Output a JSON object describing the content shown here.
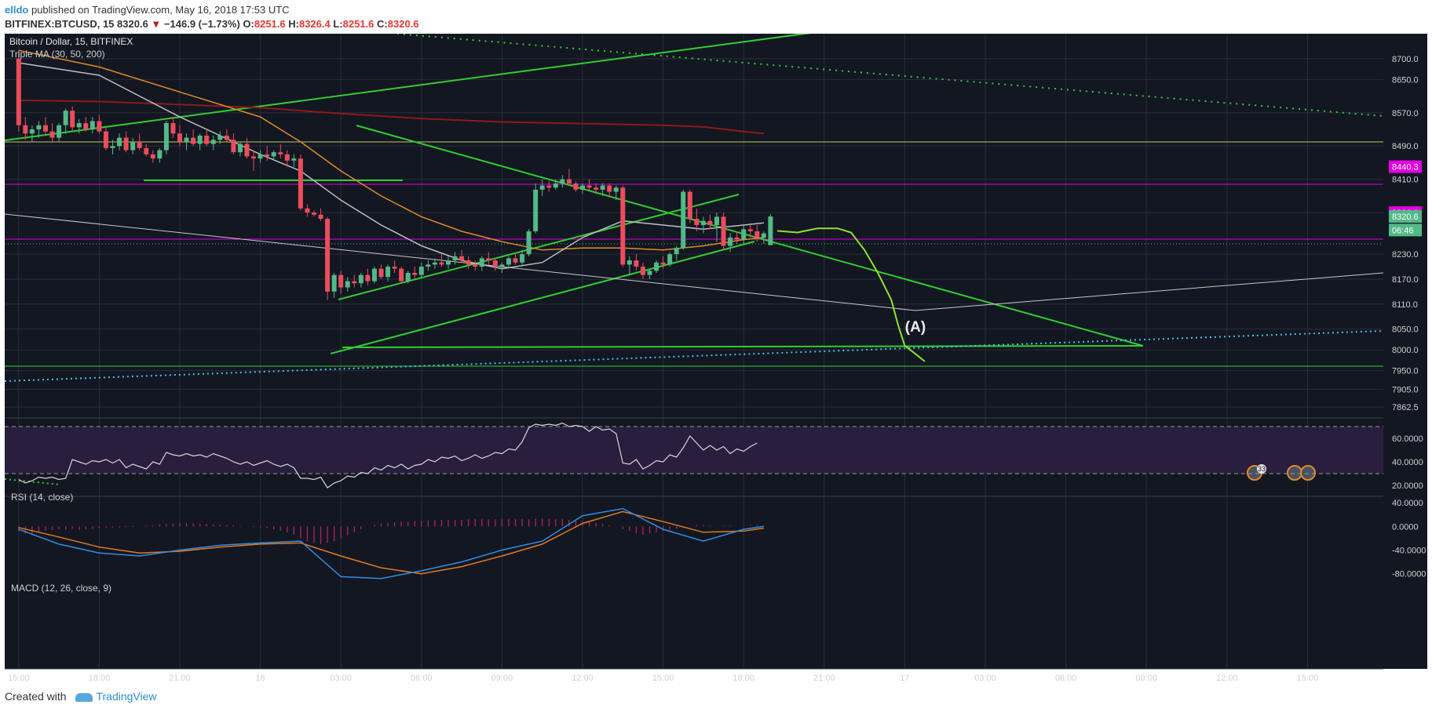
{
  "header": {
    "author": "elldo",
    "published_text": "published on TradingView.com, May 16, 2018 17:53 UTC",
    "symbol": "BITFINEX:BTCUSD, 15",
    "price": "8320.6",
    "arrow": "▼",
    "change": "−146.9 (−1.73%)",
    "o_label": "O:",
    "o_val": "8251.6",
    "h_label": "H:",
    "h_val": "8326.4",
    "l_label": "L:",
    "l_val": "8251.6",
    "c_label": "C:",
    "c_val": "8320.6"
  },
  "footer": {
    "created_with": "Created with",
    "brand": "TradingView"
  },
  "colors": {
    "bg": "#131722",
    "grid": "#2a2e39",
    "up": "#53b987",
    "down": "#eb4d5c",
    "ma30": "#bdbdbd",
    "ma50": "#e08a28",
    "ma200": "#8b1a1a",
    "trend": "#32cd32",
    "pink": "#e100e1",
    "cyan": "#3fc6e6",
    "yellowline": "#c8c85a",
    "rsi": "#d6d6d6",
    "rsi_band": "#2a1e3f",
    "macd": "#2e8ee6",
    "signal": "#e07a1f",
    "hist": "#b0235f"
  },
  "chart_data": {
    "type": "candlestick",
    "title": "Bitcoin / Dollar, 15, BITFINEX",
    "indicator_label": "Triple MA (30, 50, 200)",
    "annotation": "(A)",
    "earnings_badge": "33",
    "ylim": [
      7840,
      8760
    ],
    "price_ticks": [
      "8700.0",
      "8650.0",
      "8570.0",
      "8490.0",
      "8410.0",
      "8330.0",
      "8230.0",
      "8170.0",
      "8110.0",
      "8050.0",
      "8000.0",
      "7950.0",
      "7905.0",
      "7862.5"
    ],
    "price_labels": [
      {
        "value": 8440.3,
        "text": "8440.3",
        "color": "#e100e1"
      },
      {
        "value": 8330.0,
        "text": "8330.0",
        "color": "#e100e1"
      },
      {
        "value": 8320.6,
        "text": "8320.6",
        "color": "#53b987"
      },
      {
        "value": 8288,
        "text": "06:46",
        "color": "#53b987"
      }
    ],
    "x_ticks": [
      {
        "t": 0,
        "label": "15:00"
      },
      {
        "t": 12,
        "label": "18:00"
      },
      {
        "t": 24,
        "label": "21:00"
      },
      {
        "t": 36,
        "label": "16"
      },
      {
        "t": 48,
        "label": "03:00"
      },
      {
        "t": 60,
        "label": "06:00"
      },
      {
        "t": 72,
        "label": "09:00"
      },
      {
        "t": 84,
        "label": "12:00"
      },
      {
        "t": 96,
        "label": "15:00"
      },
      {
        "t": 108,
        "label": "18:00"
      },
      {
        "t": 120,
        "label": "21:00"
      },
      {
        "t": 132,
        "label": "17"
      },
      {
        "t": 144,
        "label": "03:00"
      },
      {
        "t": 156,
        "label": "06:00"
      },
      {
        "t": 168,
        "label": "09:00"
      },
      {
        "t": 180,
        "label": "12:00"
      },
      {
        "t": 192,
        "label": "15:00"
      }
    ],
    "candles": [
      [
        8700,
        8720,
        8525,
        8540
      ],
      [
        8540,
        8560,
        8505,
        8520
      ],
      [
        8520,
        8540,
        8500,
        8530
      ],
      [
        8530,
        8550,
        8510,
        8540
      ],
      [
        8540,
        8560,
        8515,
        8525
      ],
      [
        8525,
        8545,
        8500,
        8510
      ],
      [
        8510,
        8545,
        8500,
        8540
      ],
      [
        8540,
        8580,
        8520,
        8575
      ],
      [
        8575,
        8585,
        8525,
        8535
      ],
      [
        8535,
        8555,
        8520,
        8545
      ],
      [
        8545,
        8560,
        8525,
        8530
      ],
      [
        8530,
        8560,
        8520,
        8550
      ],
      [
        8550,
        8565,
        8520,
        8525
      ],
      [
        8525,
        8535,
        8480,
        8485
      ],
      [
        8485,
        8505,
        8470,
        8490
      ],
      [
        8490,
        8520,
        8480,
        8510
      ],
      [
        8510,
        8525,
        8475,
        8480
      ],
      [
        8480,
        8510,
        8470,
        8500
      ],
      [
        8500,
        8520,
        8480,
        8485
      ],
      [
        8485,
        8495,
        8465,
        8470
      ],
      [
        8470,
        8480,
        8450,
        8460
      ],
      [
        8460,
        8485,
        8450,
        8480
      ],
      [
        8480,
        8550,
        8470,
        8545
      ],
      [
        8545,
        8560,
        8510,
        8520
      ],
      [
        8520,
        8540,
        8490,
        8500
      ],
      [
        8500,
        8520,
        8480,
        8510
      ],
      [
        8510,
        8530,
        8490,
        8495
      ],
      [
        8495,
        8520,
        8480,
        8515
      ],
      [
        8515,
        8530,
        8490,
        8495
      ],
      [
        8495,
        8515,
        8480,
        8505
      ],
      [
        8505,
        8525,
        8495,
        8515
      ],
      [
        8515,
        8530,
        8500,
        8505
      ],
      [
        8505,
        8520,
        8470,
        8475
      ],
      [
        8475,
        8500,
        8465,
        8495
      ],
      [
        8495,
        8510,
        8460,
        8465
      ],
      [
        8465,
        8480,
        8430,
        8460
      ],
      [
        8460,
        8480,
        8450,
        8470
      ],
      [
        8470,
        8490,
        8455,
        8465
      ],
      [
        8465,
        8480,
        8455,
        8475
      ],
      [
        8475,
        8495,
        8460,
        8470
      ],
      [
        8470,
        8480,
        8440,
        8455
      ],
      [
        8455,
        8470,
        8440,
        8460
      ],
      [
        8460,
        8470,
        8335,
        8340
      ],
      [
        8340,
        8350,
        8320,
        8330
      ],
      [
        8330,
        8335,
        8320,
        8325
      ],
      [
        8325,
        8340,
        8310,
        8315
      ],
      [
        8315,
        8320,
        8120,
        8140
      ],
      [
        8140,
        8185,
        8125,
        8180
      ],
      [
        8180,
        8190,
        8135,
        8150
      ],
      [
        8150,
        8175,
        8140,
        8165
      ],
      [
        8165,
        8180,
        8150,
        8160
      ],
      [
        8160,
        8185,
        8150,
        8180
      ],
      [
        8180,
        8195,
        8155,
        8165
      ],
      [
        8165,
        8200,
        8160,
        8195
      ],
      [
        8195,
        8205,
        8170,
        8175
      ],
      [
        8175,
        8205,
        8165,
        8200
      ],
      [
        8200,
        8215,
        8185,
        8195
      ],
      [
        8195,
        8200,
        8160,
        8165
      ],
      [
        8165,
        8190,
        8160,
        8185
      ],
      [
        8185,
        8200,
        8170,
        8180
      ],
      [
        8180,
        8210,
        8175,
        8200
      ],
      [
        8200,
        8215,
        8190,
        8205
      ],
      [
        8205,
        8220,
        8195,
        8210
      ],
      [
        8210,
        8230,
        8200,
        8205
      ],
      [
        8205,
        8225,
        8195,
        8215
      ],
      [
        8215,
        8235,
        8205,
        8225
      ],
      [
        8225,
        8240,
        8210,
        8215
      ],
      [
        8215,
        8225,
        8195,
        8205
      ],
      [
        8205,
        8215,
        8190,
        8200
      ],
      [
        8200,
        8225,
        8190,
        8220
      ],
      [
        8220,
        8235,
        8205,
        8215
      ],
      [
        8215,
        8220,
        8190,
        8200
      ],
      [
        8200,
        8210,
        8185,
        8205
      ],
      [
        8205,
        8225,
        8195,
        8220
      ],
      [
        8220,
        8230,
        8205,
        8210
      ],
      [
        8210,
        8240,
        8205,
        8230
      ],
      [
        8230,
        8290,
        8225,
        8285
      ],
      [
        8285,
        8400,
        8280,
        8385
      ],
      [
        8385,
        8410,
        8370,
        8395
      ],
      [
        8395,
        8405,
        8380,
        8390
      ],
      [
        8390,
        8410,
        8385,
        8400
      ],
      [
        8400,
        8420,
        8390,
        8410
      ],
      [
        8410,
        8435,
        8395,
        8400
      ],
      [
        8400,
        8405,
        8380,
        8385
      ],
      [
        8385,
        8400,
        8375,
        8395
      ],
      [
        8395,
        8410,
        8380,
        8390
      ],
      [
        8390,
        8400,
        8375,
        8385
      ],
      [
        8385,
        8400,
        8370,
        8395
      ],
      [
        8395,
        8400,
        8370,
        8380
      ],
      [
        8380,
        8395,
        8360,
        8390
      ],
      [
        8390,
        8395,
        8200,
        8205
      ],
      [
        8205,
        8225,
        8180,
        8215
      ],
      [
        8215,
        8230,
        8190,
        8200
      ],
      [
        8200,
        8210,
        8170,
        8180
      ],
      [
        8180,
        8195,
        8170,
        8190
      ],
      [
        8190,
        8215,
        8185,
        8210
      ],
      [
        8210,
        8225,
        8195,
        8205
      ],
      [
        8205,
        8235,
        8200,
        8230
      ],
      [
        8230,
        8250,
        8215,
        8245
      ],
      [
        8245,
        8385,
        8240,
        8380
      ],
      [
        8380,
        8385,
        8305,
        8315
      ],
      [
        8315,
        8340,
        8285,
        8300
      ],
      [
        8300,
        8320,
        8280,
        8310
      ],
      [
        8310,
        8325,
        8290,
        8300
      ],
      [
        8300,
        8330,
        8260,
        8320
      ],
      [
        8320,
        8330,
        8240,
        8250
      ],
      [
        8250,
        8280,
        8235,
        8270
      ],
      [
        8270,
        8285,
        8255,
        8265
      ],
      [
        8265,
        8300,
        8255,
        8290
      ],
      [
        8290,
        8305,
        8270,
        8285
      ],
      [
        8285,
        8300,
        8260,
        8270
      ],
      [
        8270,
        8285,
        8255,
        8280
      ],
      [
        8251.6,
        8326.4,
        8251.6,
        8320.6
      ]
    ],
    "ma30": [
      [
        0,
        8690
      ],
      [
        12,
        8660
      ],
      [
        24,
        8560
      ],
      [
        36,
        8470
      ],
      [
        42,
        8430
      ],
      [
        48,
        8360
      ],
      [
        54,
        8300
      ],
      [
        60,
        8250
      ],
      [
        66,
        8215
      ],
      [
        72,
        8195
      ],
      [
        78,
        8210
      ],
      [
        84,
        8270
      ],
      [
        90,
        8310
      ],
      [
        96,
        8300
      ],
      [
        102,
        8290
      ],
      [
        108,
        8300
      ],
      [
        111,
        8305
      ]
    ],
    "ma50": [
      [
        0,
        8720
      ],
      [
        12,
        8680
      ],
      [
        24,
        8620
      ],
      [
        36,
        8560
      ],
      [
        42,
        8500
      ],
      [
        48,
        8430
      ],
      [
        54,
        8370
      ],
      [
        60,
        8320
      ],
      [
        66,
        8285
      ],
      [
        72,
        8260
      ],
      [
        78,
        8240
      ],
      [
        84,
        8245
      ],
      [
        90,
        8245
      ],
      [
        96,
        8240
      ],
      [
        102,
        8250
      ],
      [
        108,
        8265
      ],
      [
        111,
        8270
      ]
    ],
    "ma200": [
      [
        0,
        8600
      ],
      [
        12,
        8597
      ],
      [
        24,
        8590
      ],
      [
        36,
        8582
      ],
      [
        48,
        8568
      ],
      [
        60,
        8556
      ],
      [
        72,
        8548
      ],
      [
        84,
        8544
      ],
      [
        96,
        8540
      ],
      [
        102,
        8536
      ],
      [
        108,
        8525
      ],
      [
        111,
        8520
      ]
    ],
    "forecast": [
      [
        113,
        8286
      ],
      [
        116,
        8282
      ],
      [
        119,
        8292
      ],
      [
        122,
        8292
      ],
      [
        124,
        8282
      ],
      [
        126,
        8240
      ],
      [
        128,
        8185
      ],
      [
        130,
        8120
      ],
      [
        131,
        8060
      ],
      [
        132,
        8010
      ],
      [
        134,
        7985
      ],
      [
        135,
        7972
      ]
    ],
    "rsi": {
      "label": "RSI (14, close)",
      "ylim": [
        12,
        76
      ],
      "ticks": [
        "60.0000",
        "40.0000",
        "20.0000"
      ],
      "bands": [
        70,
        30
      ],
      "values": [
        25,
        22,
        24,
        27,
        26,
        27,
        25,
        26,
        42,
        40,
        38,
        41,
        40,
        42,
        39,
        42,
        35,
        38,
        36,
        34,
        40,
        38,
        48,
        46,
        45,
        47,
        45,
        46,
        44,
        47,
        45,
        43,
        40,
        38,
        40,
        37,
        39,
        41,
        38,
        36,
        38,
        35,
        26,
        26,
        25,
        27,
        18,
        22,
        24,
        28,
        27,
        31,
        30,
        35,
        33,
        37,
        35,
        38,
        34,
        37,
        38,
        42,
        40,
        44,
        43,
        45,
        41,
        43,
        46,
        43,
        45,
        48,
        47,
        51,
        50,
        57,
        69,
        72,
        71,
        72,
        71,
        73,
        70,
        71,
        70,
        66,
        70,
        67,
        68,
        64,
        39,
        38,
        42,
        34,
        37,
        41,
        40,
        46,
        44,
        52,
        62,
        56,
        50,
        54,
        50,
        53,
        47,
        51,
        49,
        53,
        56
      ]
    },
    "macd": {
      "label": "MACD (12, 26, close, 9)",
      "ylim": [
        -95,
        48
      ],
      "ticks": [
        "40.0000",
        "0.0000",
        "-40.0000",
        "-80.0000"
      ],
      "macd": [
        [
          0,
          -5
        ],
        [
          6,
          -30
        ],
        [
          12,
          -45
        ],
        [
          18,
          -50
        ],
        [
          24,
          -40
        ],
        [
          30,
          -32
        ],
        [
          36,
          -28
        ],
        [
          42,
          -25
        ],
        [
          45,
          -55
        ],
        [
          48,
          -85
        ],
        [
          54,
          -88
        ],
        [
          60,
          -75
        ],
        [
          66,
          -60
        ],
        [
          72,
          -40
        ],
        [
          78,
          -25
        ],
        [
          84,
          18
        ],
        [
          90,
          30
        ],
        [
          96,
          -5
        ],
        [
          102,
          -25
        ],
        [
          108,
          -5
        ],
        [
          111,
          0
        ]
      ],
      "signal": [
        [
          0,
          -2
        ],
        [
          6,
          -18
        ],
        [
          12,
          -35
        ],
        [
          18,
          -45
        ],
        [
          24,
          -42
        ],
        [
          30,
          -35
        ],
        [
          36,
          -30
        ],
        [
          42,
          -28
        ],
        [
          48,
          -50
        ],
        [
          54,
          -70
        ],
        [
          60,
          -80
        ],
        [
          66,
          -68
        ],
        [
          72,
          -50
        ],
        [
          78,
          -30
        ],
        [
          84,
          5
        ],
        [
          90,
          25
        ],
        [
          96,
          8
        ],
        [
          102,
          -10
        ],
        [
          108,
          -8
        ],
        [
          111,
          -3
        ]
      ],
      "hist": [
        -8,
        -12,
        -15,
        -10,
        -8,
        -6,
        -5,
        -5,
        -4,
        -6,
        -5,
        -4,
        -3,
        -2,
        -2,
        -2,
        -1,
        -1,
        0,
        1,
        2,
        3,
        4,
        5,
        6,
        6,
        5,
        4,
        4,
        3,
        3,
        2,
        2,
        1,
        0,
        -1,
        -2,
        -3,
        -5,
        -7,
        -10,
        -14,
        -20,
        -25,
        -28,
        -30,
        -28,
        -25,
        -20,
        -15,
        -10,
        -5,
        0,
        3,
        5,
        6,
        7,
        8,
        8,
        9,
        9,
        10,
        10,
        11,
        11,
        11,
        11,
        12,
        12,
        12,
        12,
        12,
        12,
        12,
        12,
        12,
        12,
        13,
        13,
        13,
        12,
        12,
        11,
        10,
        9,
        8,
        6,
        4,
        2,
        0,
        -5,
        -8,
        -12,
        -14,
        -12,
        -10,
        -8,
        -6,
        -4,
        -2,
        0,
        2,
        2,
        1,
        0,
        1,
        1,
        0,
        1,
        2,
        2
      ]
    }
  }
}
